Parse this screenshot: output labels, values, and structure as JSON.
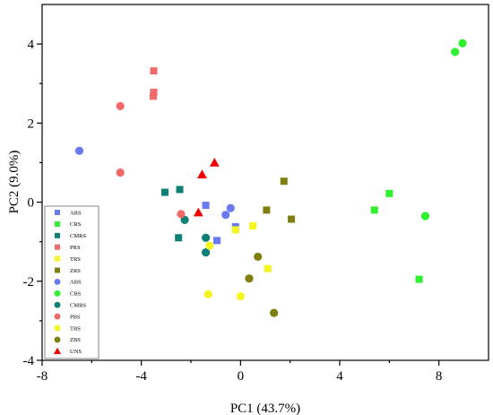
{
  "chart_data": {
    "type": "scatter",
    "xlabel": "PC1 (43.7%)",
    "ylabel": "PC2 (9.0%)",
    "xlim": [
      -8,
      10
    ],
    "ylim": [
      -4,
      5
    ],
    "xticks": [
      -8,
      -4,
      0,
      4,
      8
    ],
    "yticks": [
      -4,
      -2,
      0,
      2,
      4
    ],
    "xtick_labels": [
      "-8",
      "-4",
      "0",
      "4",
      "8"
    ],
    "ytick_labels": [
      "-4",
      "-2",
      "0",
      "2",
      "4"
    ],
    "grid": false,
    "legend_position": "bottom-left",
    "series": [
      {
        "name": "ARS",
        "marker": "square",
        "color": "#6a79f0",
        "points": [
          [
            -1.4,
            -0.08
          ],
          [
            -0.95,
            -0.97
          ],
          [
            -0.2,
            -0.62
          ]
        ]
      },
      {
        "name": "CRS",
        "marker": "square",
        "color": "#2ef02e",
        "points": [
          [
            5.4,
            -0.2
          ],
          [
            6.0,
            0.22
          ],
          [
            7.2,
            -1.95
          ]
        ]
      },
      {
        "name": "CMRS",
        "marker": "square",
        "color": "#0e7f74",
        "points": [
          [
            -3.05,
            0.25
          ],
          [
            -2.45,
            0.32
          ],
          [
            -2.5,
            -0.9
          ]
        ]
      },
      {
        "name": "PRS",
        "marker": "square",
        "color": "#f06a6a",
        "points": [
          [
            -3.5,
            3.32
          ],
          [
            -3.5,
            2.78
          ],
          [
            -3.52,
            2.68
          ]
        ]
      },
      {
        "name": "TRS",
        "marker": "square",
        "color": "#f5f522",
        "points": [
          [
            -0.2,
            -0.7
          ],
          [
            0.5,
            -0.6
          ],
          [
            1.1,
            -1.68
          ]
        ]
      },
      {
        "name": "ZRS",
        "marker": "square",
        "color": "#7f7f10",
        "points": [
          [
            1.75,
            0.53
          ],
          [
            1.05,
            -0.2
          ],
          [
            2.05,
            -0.43
          ]
        ]
      },
      {
        "name": "ABS",
        "marker": "circle",
        "color": "#6a79f0",
        "points": [
          [
            -6.5,
            1.3
          ],
          [
            -0.6,
            -0.32
          ],
          [
            -0.4,
            -0.15
          ]
        ]
      },
      {
        "name": "CBS",
        "marker": "circle",
        "color": "#2ef02e",
        "points": [
          [
            8.95,
            4.02
          ],
          [
            8.65,
            3.8
          ],
          [
            7.45,
            -0.35
          ]
        ]
      },
      {
        "name": "CMBS",
        "marker": "circle",
        "color": "#0e7f74",
        "points": [
          [
            -2.25,
            -0.45
          ],
          [
            -1.4,
            -0.9
          ],
          [
            -1.4,
            -1.27
          ]
        ]
      },
      {
        "name": "PBS",
        "marker": "circle",
        "color": "#f06a6a",
        "points": [
          [
            -4.85,
            2.43
          ],
          [
            -4.85,
            0.75
          ],
          [
            -2.4,
            -0.3
          ]
        ]
      },
      {
        "name": "TBS",
        "marker": "circle",
        "color": "#f5f522",
        "points": [
          [
            -1.25,
            -1.1
          ],
          [
            -1.3,
            -2.33
          ],
          [
            0.0,
            -2.38
          ]
        ]
      },
      {
        "name": "ZBS",
        "marker": "circle",
        "color": "#7f7f10",
        "points": [
          [
            0.7,
            -1.38
          ],
          [
            0.35,
            -1.93
          ],
          [
            1.35,
            -2.8
          ]
        ]
      },
      {
        "name": "UNS",
        "marker": "triangle",
        "color": "#ee0000",
        "points": [
          [
            -1.05,
            1.0
          ],
          [
            -1.55,
            0.7
          ],
          [
            -1.7,
            -0.26
          ]
        ]
      }
    ]
  }
}
